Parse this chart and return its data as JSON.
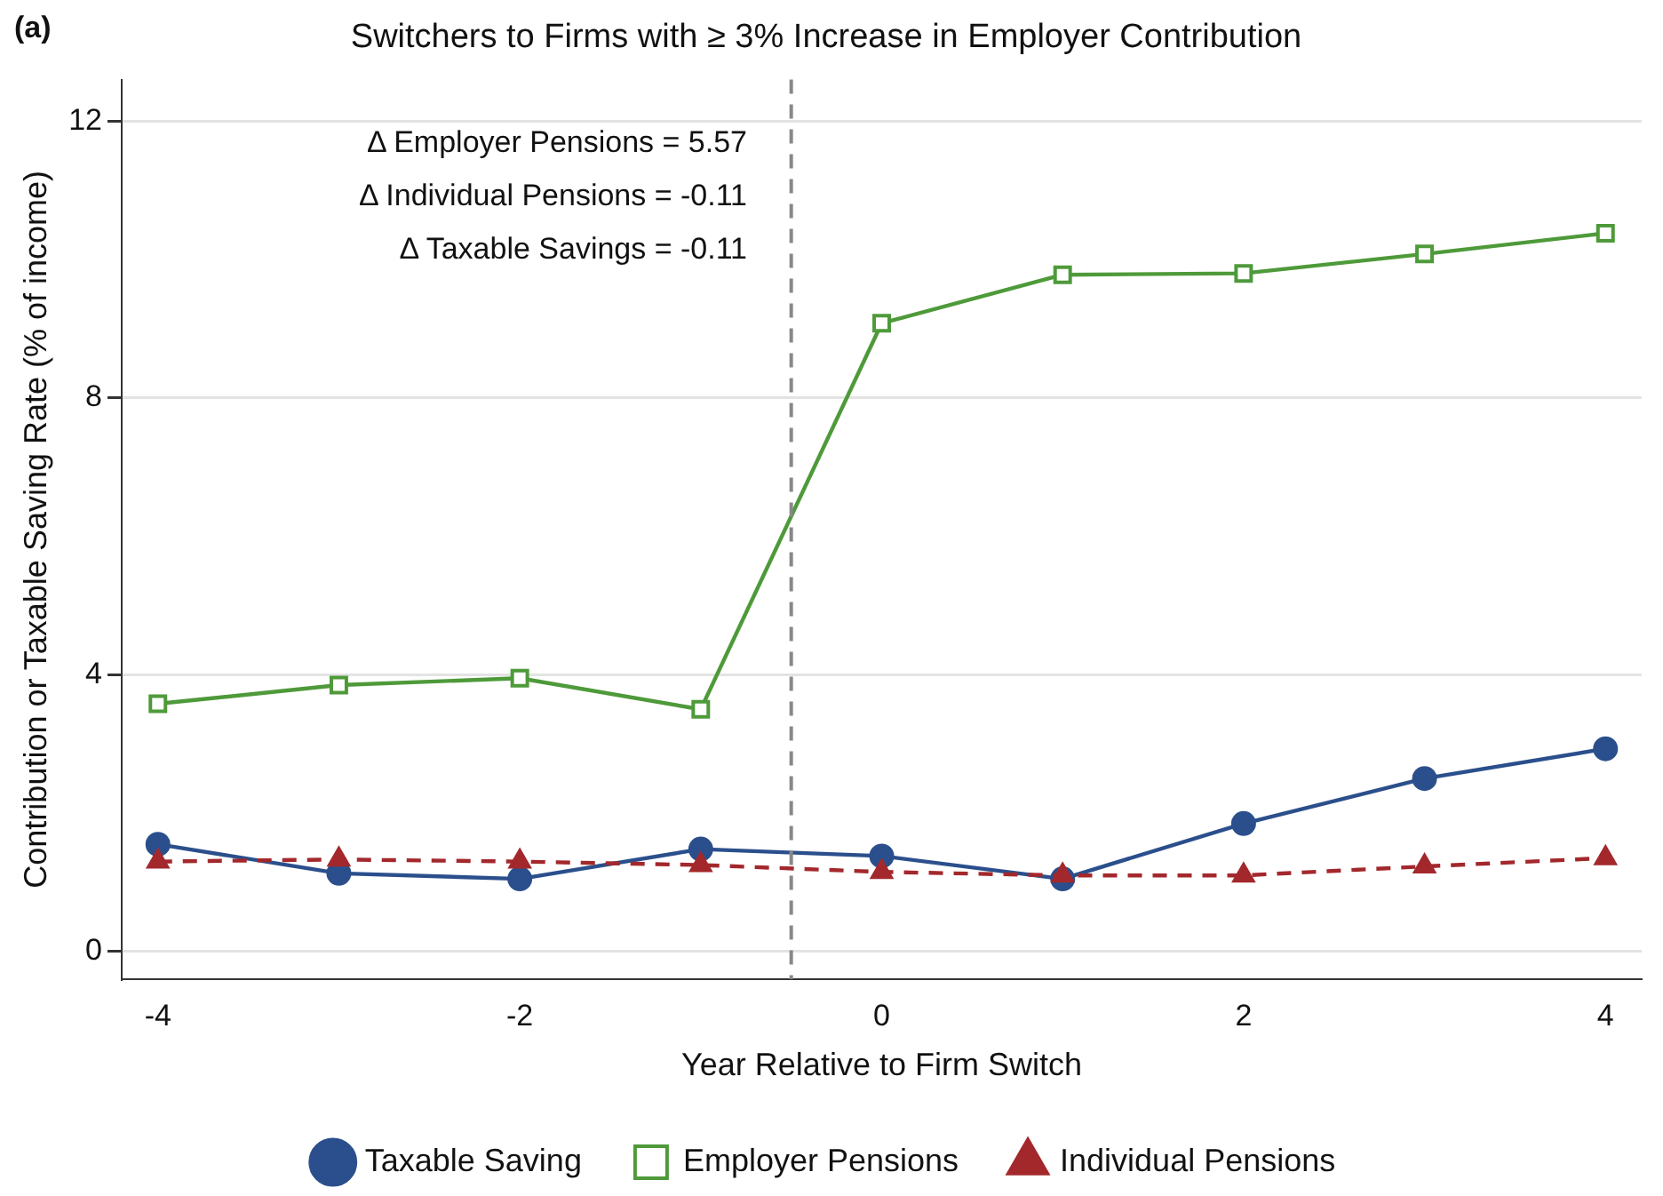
{
  "chart_data": {
    "type": "line",
    "title": "Switchers to Firms with ≥ 3% Increase in Employer Contribution",
    "xlabel": "Year Relative to Firm Switch",
    "ylabel": "Contribution or Taxable Saving Rate (% of income)",
    "x": [
      -4,
      -3,
      -2,
      -1,
      0,
      1,
      2,
      3,
      4
    ],
    "series": [
      {
        "name": "Taxable Saving",
        "color": "#2b4f8c",
        "marker": "circle",
        "line_style": "solid",
        "values": [
          1.55,
          1.13,
          1.05,
          1.48,
          1.38,
          1.05,
          1.85,
          2.5,
          2.93
        ]
      },
      {
        "name": "Employer Pensions",
        "color": "#4e9a3a",
        "marker": "square",
        "line_style": "solid",
        "values": [
          3.58,
          3.85,
          3.95,
          3.5,
          9.08,
          9.78,
          9.8,
          10.08,
          10.38
        ]
      },
      {
        "name": "Individual Pensions",
        "color": "#a3282c",
        "marker": "triangle",
        "line_style": "dashed",
        "values": [
          1.3,
          1.33,
          1.3,
          1.25,
          1.15,
          1.1,
          1.1,
          1.23,
          1.35
        ]
      }
    ],
    "xlim": [
      -4.2,
      4.2
    ],
    "xticks": [
      -4,
      -2,
      0,
      2,
      4
    ],
    "ylim": [
      -0.4,
      12.6
    ],
    "yticks": [
      0,
      4,
      8,
      12
    ],
    "ref_lines": [
      {
        "axis": "x",
        "value": -0.5,
        "color": "#888888",
        "line_style": "dashed"
      }
    ],
    "annotations": [
      "(a)",
      "Δ Employer Pensions = 5.57",
      "Δ Individual Pensions = -0.11",
      "Δ Taxable Savings = -0.11"
    ],
    "grid": "y",
    "legend": "bottom"
  }
}
